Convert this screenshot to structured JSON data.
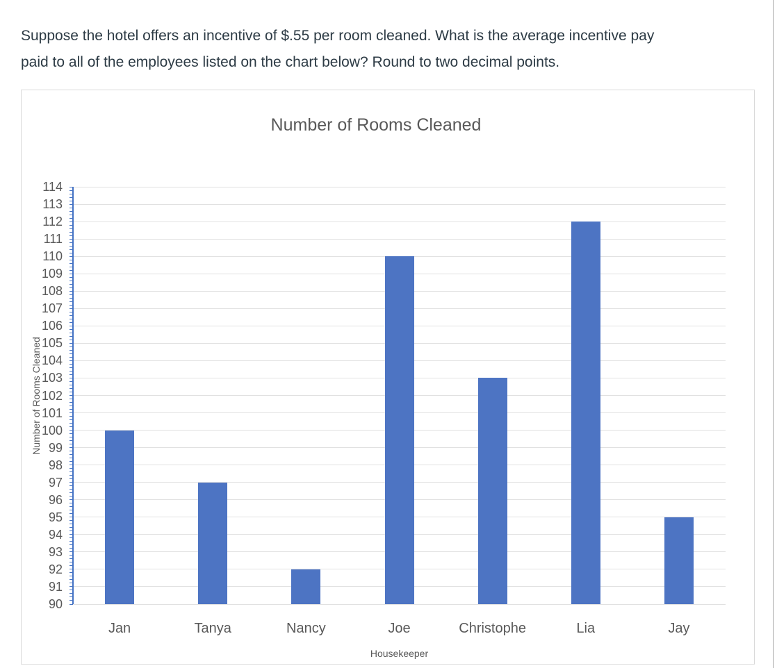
{
  "question": {
    "lines": [
      "Suppose the hotel offers an incentive of $.55 per room cleaned. What is the average incentive pay",
      "paid to all of the employees listed on the chart below? Round to two decimal points."
    ]
  },
  "chart_data": {
    "type": "bar",
    "title": "Number of Rooms Cleaned",
    "categories": [
      "Jan",
      "Tanya",
      "Nancy",
      "Joe",
      "Christophe",
      "Lia",
      "Jay"
    ],
    "values": [
      100,
      97,
      92,
      110,
      103,
      112,
      95
    ],
    "xlabel": "Housekeeper",
    "ylabel": "Number of Rooms Cleaned",
    "ylim": [
      90,
      114
    ],
    "ytick_step": 1,
    "minor_tick_step": 0.2,
    "grid": true,
    "legend": false,
    "colors": {
      "bar": "#4D74C3",
      "axis_line": "#4472C4",
      "gridline": "#E1E1E1",
      "tick_label": "#595959",
      "title": "#595959",
      "question_text": "#2D3B45",
      "chart_border": "#D9D9D9"
    }
  }
}
